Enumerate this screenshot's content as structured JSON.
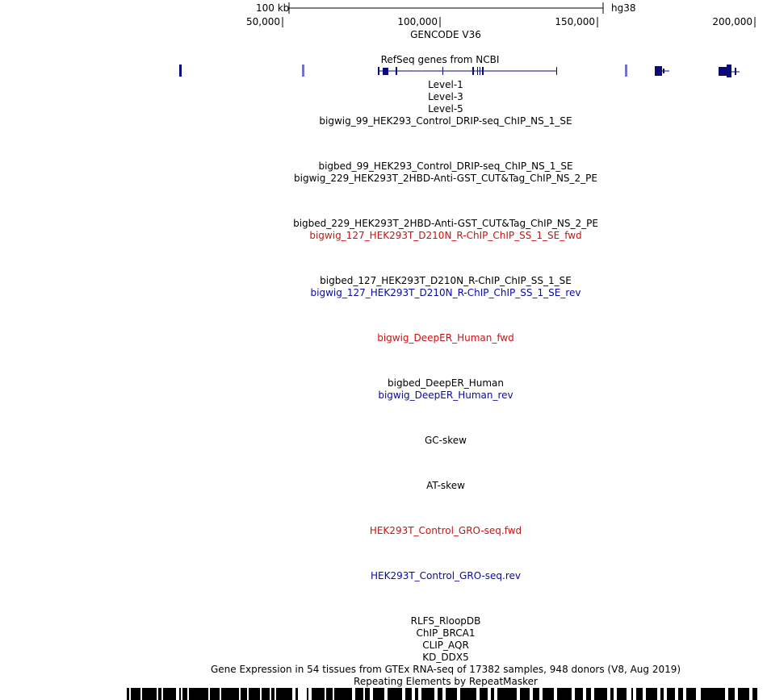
{
  "scale_bar": {
    "label": "100 kb",
    "assembly": "hg38"
  },
  "ruler": {
    "ticks": [
      "50,000",
      "100,000",
      "150,000",
      "200,000"
    ]
  },
  "gencode_label": "GENCODE V36",
  "refseq_label": "RefSeq genes from NCBI",
  "colors": {
    "gene": "#0b0b78",
    "gene_light": "#7373c0",
    "fwd": "#cc1111",
    "rev": "#0a0aa0"
  },
  "track_labels": [
    {
      "text": "Level-1",
      "color": "black"
    },
    {
      "text": "Level-3",
      "color": "black"
    },
    {
      "text": "Level-5",
      "color": "black"
    },
    {
      "text": "bigwig_99_HEK293_Control_DRIP-seq_ChIP_NS_1_SE",
      "color": "black"
    },
    {
      "text": "bigbed_99_HEK293_Control_DRIP-seq_ChIP_NS_1_SE",
      "color": "black"
    },
    {
      "text": "bigwig_229_HEK293T_2HBD-Anti-GST_CUT&Tag_ChIP_NS_2_PE",
      "color": "black"
    },
    {
      "text": "bigbed_229_HEK293T_2HBD-Anti-GST_CUT&Tag_ChIP_NS_2_PE",
      "color": "black"
    },
    {
      "text": "bigwig_127_HEK293T_D210N_R-ChIP_ChIP_SS_1_SE_fwd",
      "color": "red"
    },
    {
      "text": "bigbed_127_HEK293T_D210N_R-ChIP_ChIP_SS_1_SE",
      "color": "black"
    },
    {
      "text": "bigwig_127_HEK293T_D210N_R-ChIP_ChIP_SS_1_SE_rev",
      "color": "blue"
    },
    {
      "text": "bigwig_DeepER_Human_fwd",
      "color": "red"
    },
    {
      "text": "bigbed_DeepER_Human",
      "color": "black"
    },
    {
      "text": "bigwig_DeepER_Human_rev",
      "color": "blue"
    },
    {
      "text": "GC-skew",
      "color": "black"
    },
    {
      "text": "AT-skew",
      "color": "black"
    },
    {
      "text": "HEK293T_Control_GRO-seq.fwd",
      "color": "red"
    },
    {
      "text": "HEK293T_Control_GRO-seq.rev",
      "color": "blue"
    },
    {
      "text": "RLFS_RloopDB",
      "color": "black"
    },
    {
      "text": "ChIP_BRCA1",
      "color": "black"
    },
    {
      "text": "CLIP_AQR",
      "color": "black"
    },
    {
      "text": "KD_DDX5",
      "color": "black"
    },
    {
      "text": "Gene Expression in 54 tissues from GTEx RNA-seq of 17382 samples, 948 donors (V8, Aug 2019)",
      "color": "black"
    },
    {
      "text": "Repeating Elements by RepeatMasker",
      "color": "black"
    }
  ]
}
